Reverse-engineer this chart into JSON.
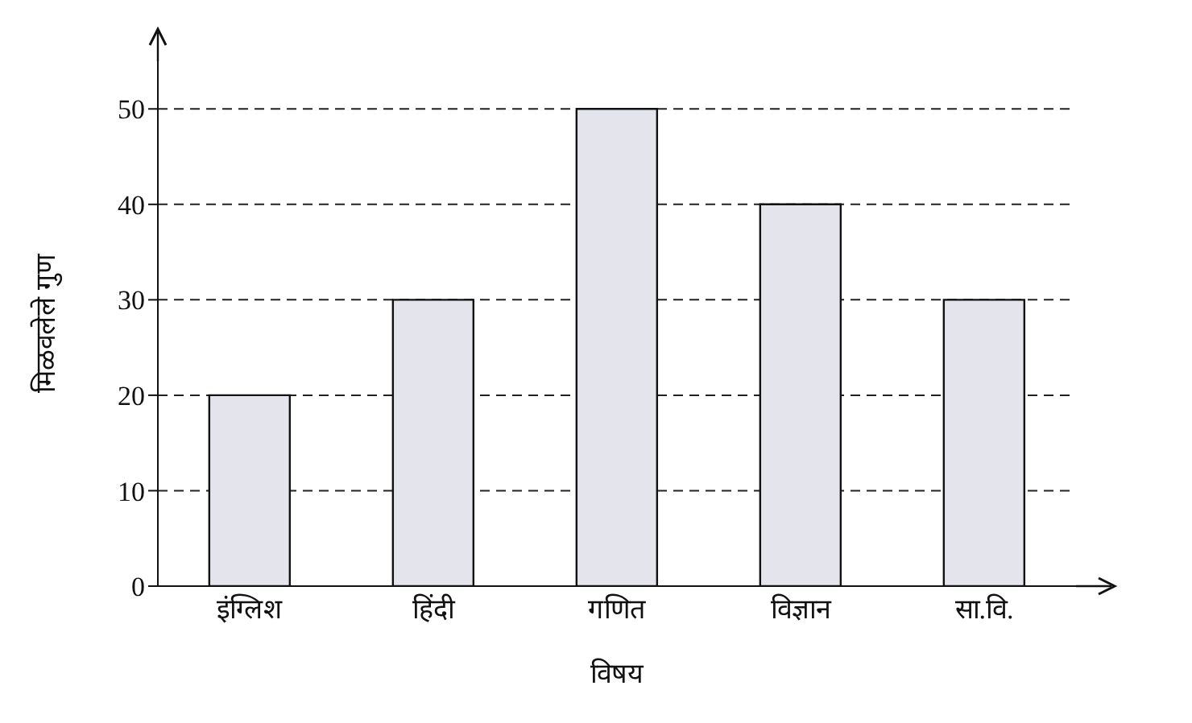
{
  "chart_data": {
    "type": "bar",
    "categories": [
      "इंग्लिश",
      "हिंदी",
      "गणित",
      "विज्ञान",
      "सा.वि."
    ],
    "values": [
      20,
      30,
      50,
      40,
      30
    ],
    "color": "#e4e4ec",
    "xlabel": "विषय",
    "ylabel": "मिळवलेले गुण",
    "ylim": [
      0,
      55
    ],
    "yticks": [
      0,
      10,
      20,
      30,
      40,
      50
    ],
    "grid": "y"
  }
}
